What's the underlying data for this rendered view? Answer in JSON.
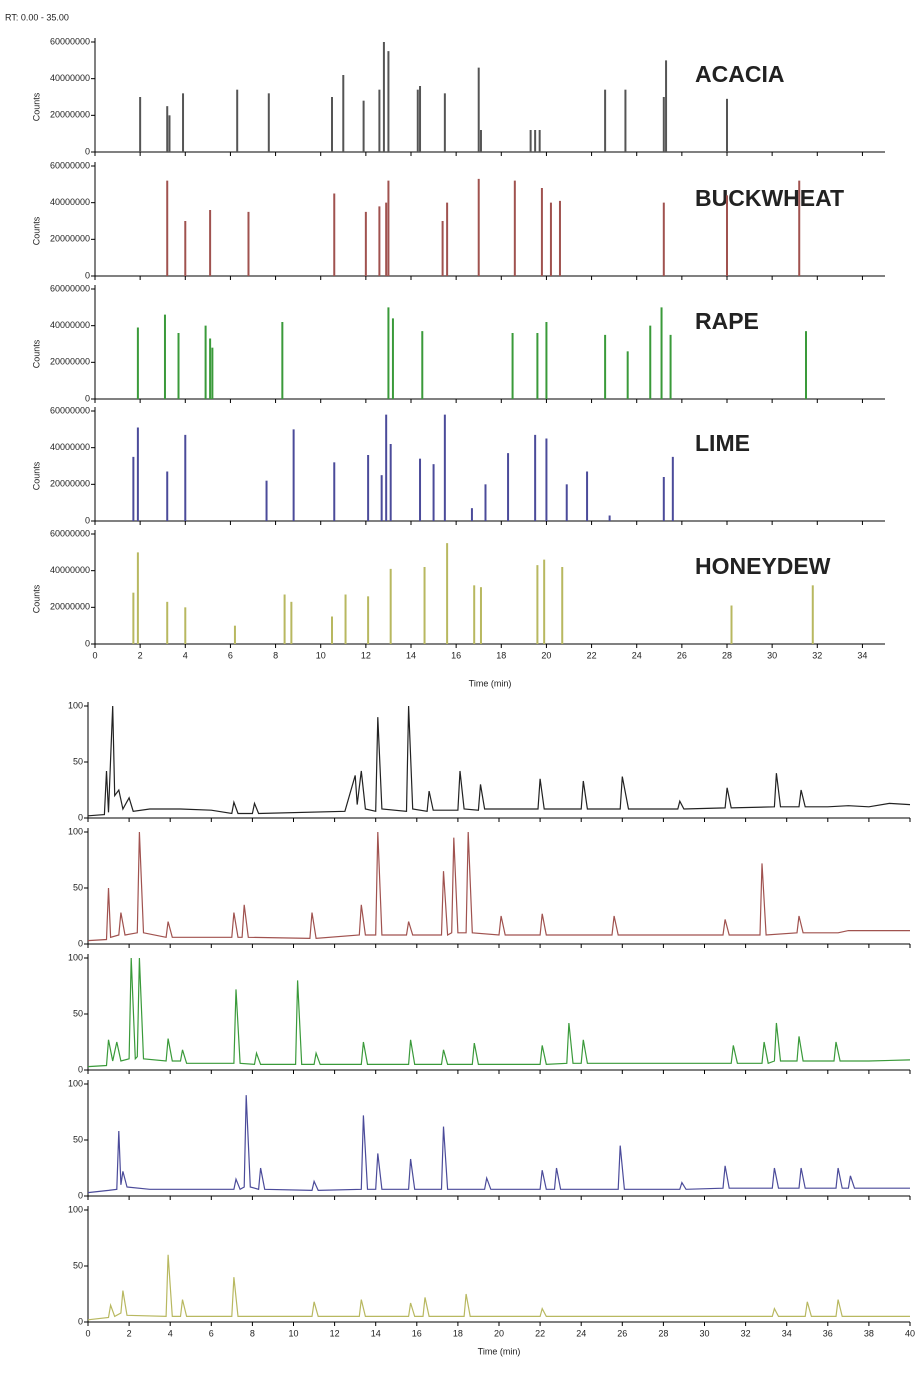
{
  "chart_data": [
    {
      "type": "stick",
      "header": "RT: 0.00 - 35.00",
      "ylabel": "Counts",
      "xlabel": "Time (min)",
      "xlim": [
        0,
        35
      ],
      "xticks": [
        0,
        2,
        4,
        6,
        8,
        10,
        12,
        14,
        16,
        18,
        20,
        22,
        24,
        26,
        28,
        30,
        32,
        34
      ],
      "ylim": [
        0,
        60000000
      ],
      "yticks": [
        0,
        20000000,
        40000000,
        60000000
      ],
      "panels": [
        {
          "name": "ACACIA",
          "color": "#555555",
          "x": [
            2.0,
            3.2,
            3.3,
            3.9,
            6.3,
            7.7,
            10.5,
            11.0,
            11.9,
            12.6,
            12.8,
            13.0,
            14.3,
            14.4,
            15.5,
            17.0,
            17.1,
            19.3,
            19.5,
            19.7,
            22.6,
            23.5,
            25.2,
            25.3,
            28.0
          ],
          "values": [
            30000000,
            25000000,
            20000000,
            32000000,
            34000000,
            32000000,
            30000000,
            42000000,
            28000000,
            34000000,
            60000000,
            55000000,
            34000000,
            36000000,
            32000000,
            46000000,
            12000000,
            12000000,
            12000000,
            12000000,
            34000000,
            34000000,
            30000000,
            50000000,
            29000000
          ]
        },
        {
          "name": "BUCKWHEAT",
          "color": "#a0524f",
          "x": [
            3.2,
            4.0,
            5.1,
            6.8,
            10.6,
            12.0,
            12.6,
            12.9,
            13.0,
            15.4,
            15.6,
            17.0,
            18.6,
            19.8,
            20.2,
            20.6,
            25.2,
            28.0,
            31.2
          ],
          "values": [
            52000000,
            30000000,
            36000000,
            35000000,
            45000000,
            35000000,
            38000000,
            40000000,
            52000000,
            30000000,
            40000000,
            53000000,
            52000000,
            48000000,
            40000000,
            41000000,
            40000000,
            44000000,
            52000000
          ]
        },
        {
          "name": "RAPE",
          "color": "#3a9a3a",
          "x": [
            1.9,
            3.1,
            3.7,
            4.9,
            5.1,
            5.2,
            8.3,
            13.0,
            13.2,
            14.5,
            18.5,
            19.6,
            20.0,
            22.6,
            23.6,
            24.6,
            25.1,
            25.5,
            31.5
          ],
          "values": [
            39000000,
            46000000,
            36000000,
            40000000,
            33000000,
            28000000,
            42000000,
            50000000,
            44000000,
            37000000,
            36000000,
            36000000,
            42000000,
            35000000,
            26000000,
            40000000,
            50000000,
            35000000,
            37000000
          ]
        },
        {
          "name": "LIME",
          "color": "#4b4b9a",
          "x": [
            1.7,
            1.9,
            3.2,
            4.0,
            7.6,
            8.8,
            10.6,
            12.1,
            12.7,
            12.9,
            13.1,
            14.4,
            15.0,
            15.5,
            16.7,
            17.3,
            18.3,
            19.5,
            20.0,
            20.9,
            21.8,
            22.8,
            25.2,
            25.6
          ],
          "values": [
            35000000,
            51000000,
            27000000,
            47000000,
            22000000,
            50000000,
            32000000,
            36000000,
            25000000,
            58000000,
            42000000,
            34000000,
            31000000,
            58000000,
            7000000,
            20000000,
            37000000,
            47000000,
            45000000,
            20000000,
            27000000,
            3000000,
            24000000,
            35000000
          ]
        },
        {
          "name": "HONEYDEW",
          "color": "#b8b860",
          "x": [
            1.7,
            1.9,
            3.2,
            4.0,
            6.2,
            8.4,
            8.7,
            10.5,
            11.1,
            12.1,
            13.1,
            14.6,
            15.6,
            16.8,
            17.1,
            19.6,
            19.9,
            20.7,
            28.2,
            31.8
          ],
          "values": [
            28000000,
            50000000,
            23000000,
            20000000,
            10000000,
            27000000,
            23000000,
            15000000,
            27000000,
            26000000,
            41000000,
            42000000,
            55000000,
            32000000,
            31000000,
            43000000,
            46000000,
            42000000,
            21000000,
            32000000
          ]
        }
      ]
    },
    {
      "type": "line",
      "xlabel": "Time (min)",
      "xlim": [
        0,
        40
      ],
      "xticks": [
        0,
        2,
        4,
        6,
        8,
        10,
        12,
        14,
        16,
        18,
        20,
        22,
        24,
        26,
        28,
        30,
        32,
        34,
        36,
        38,
        40
      ],
      "ylim": [
        0,
        100
      ],
      "yticks": [
        0,
        50,
        100
      ],
      "panels": [
        {
          "color": "#222222",
          "x": [
            0,
            0.8,
            0.9,
            1.0,
            1.2,
            1.3,
            1.5,
            1.7,
            2.0,
            2.2,
            3.0,
            4.5,
            6.0,
            7.0,
            7.1,
            7.3,
            8.0,
            8.1,
            8.3,
            12.5,
            13.0,
            13.1,
            13.3,
            13.5,
            14.0,
            14.1,
            14.3,
            15.5,
            15.6,
            15.8,
            16.5,
            16.6,
            16.8,
            18.0,
            18.1,
            18.3,
            19.0,
            19.1,
            19.3,
            21.9,
            22.0,
            22.2,
            24.0,
            24.1,
            24.3,
            25.9,
            26.0,
            26.3,
            28.7,
            28.8,
            29.0,
            31.0,
            31.1,
            31.3,
            33.4,
            33.5,
            33.7,
            34.6,
            34.7,
            34.9,
            36.0,
            37.0,
            38.0,
            39.0,
            40.0
          ],
          "values": [
            2,
            3,
            42,
            5,
            100,
            20,
            25,
            8,
            18,
            6,
            8,
            8,
            7,
            4,
            14,
            4,
            4,
            13,
            4,
            6,
            38,
            12,
            42,
            8,
            6,
            90,
            8,
            6,
            100,
            8,
            6,
            24,
            7,
            7,
            42,
            8,
            7,
            30,
            8,
            8,
            35,
            8,
            8,
            33,
            8,
            8,
            37,
            8,
            8,
            15,
            8,
            9,
            27,
            9,
            10,
            40,
            10,
            10,
            25,
            10,
            10,
            11,
            10,
            13,
            12
          ]
        },
        {
          "color": "#a0524f",
          "x": [
            0,
            0.9,
            1.0,
            1.1,
            1.5,
            1.6,
            1.8,
            2.4,
            2.5,
            2.7,
            3.8,
            3.9,
            4.1,
            7.0,
            7.1,
            7.3,
            7.5,
            7.6,
            7.8,
            10.8,
            10.9,
            11.1,
            13.2,
            13.3,
            13.5,
            14.0,
            14.1,
            14.3,
            15.5,
            15.6,
            15.8,
            17.2,
            17.3,
            17.5,
            17.7,
            17.8,
            18.0,
            18.4,
            18.5,
            18.7,
            20.0,
            20.1,
            20.3,
            22.0,
            22.1,
            22.3,
            25.5,
            25.6,
            25.8,
            27.0,
            28.5,
            30.9,
            31.0,
            31.2,
            32.7,
            32.8,
            33.0,
            34.5,
            34.6,
            34.8,
            36.5,
            37.0,
            40.0
          ],
          "values": [
            3,
            4,
            50,
            6,
            8,
            28,
            8,
            10,
            100,
            10,
            6,
            20,
            6,
            6,
            28,
            6,
            6,
            35,
            6,
            5,
            28,
            5,
            8,
            35,
            8,
            8,
            100,
            8,
            8,
            20,
            8,
            8,
            65,
            8,
            10,
            95,
            10,
            10,
            100,
            10,
            8,
            25,
            8,
            8,
            27,
            8,
            8,
            25,
            8,
            8,
            8,
            8,
            22,
            8,
            8,
            72,
            8,
            10,
            25,
            10,
            10,
            12,
            12
          ]
        },
        {
          "color": "#3a9a3a",
          "x": [
            0,
            0.9,
            1.0,
            1.2,
            1.4,
            1.6,
            2.0,
            2.1,
            2.3,
            2.4,
            2.5,
            2.7,
            3.8,
            3.9,
            4.1,
            4.5,
            4.6,
            4.8,
            7.1,
            7.2,
            7.4,
            8.1,
            8.2,
            8.4,
            10.1,
            10.2,
            10.4,
            11.0,
            11.1,
            11.3,
            13.3,
            13.4,
            13.6,
            15.6,
            15.7,
            15.9,
            17.2,
            17.3,
            17.5,
            18.7,
            18.8,
            19.0,
            22.0,
            22.1,
            22.3,
            23.3,
            23.4,
            23.6,
            24.0,
            24.1,
            24.3,
            31.3,
            31.4,
            31.6,
            32.8,
            32.9,
            33.1,
            33.4,
            33.5,
            33.7,
            34.5,
            34.6,
            34.8,
            36.3,
            36.4,
            36.6,
            38.0,
            40.0
          ],
          "values": [
            3,
            4,
            27,
            8,
            25,
            8,
            10,
            100,
            10,
            12,
            100,
            10,
            8,
            28,
            8,
            8,
            18,
            6,
            6,
            72,
            6,
            5,
            15,
            5,
            5,
            80,
            5,
            5,
            15,
            5,
            5,
            25,
            5,
            5,
            27,
            5,
            5,
            18,
            5,
            5,
            24,
            5,
            5,
            22,
            5,
            6,
            42,
            6,
            6,
            27,
            6,
            6,
            22,
            6,
            6,
            25,
            6,
            8,
            42,
            8,
            8,
            30,
            8,
            8,
            25,
            8,
            8,
            9
          ]
        },
        {
          "color": "#4b4b9a",
          "x": [
            0,
            1.0,
            1.4,
            1.5,
            1.6,
            1.7,
            1.9,
            3.0,
            4.5,
            7.1,
            7.2,
            7.4,
            7.6,
            7.7,
            7.9,
            8.3,
            8.4,
            8.6,
            10.9,
            11.0,
            11.2,
            13.3,
            13.4,
            13.6,
            14.0,
            14.1,
            14.3,
            15.6,
            15.7,
            15.9,
            17.2,
            17.3,
            17.5,
            19.3,
            19.4,
            19.6,
            22.0,
            22.1,
            22.3,
            22.7,
            22.8,
            23.0,
            25.8,
            25.9,
            26.1,
            28.8,
            28.9,
            29.1,
            30.9,
            31.0,
            31.2,
            33.3,
            33.4,
            33.6,
            34.6,
            34.7,
            34.9,
            36.4,
            36.5,
            36.7,
            37.0,
            37.1,
            37.3,
            40.0
          ],
          "values": [
            3,
            5,
            6,
            58,
            10,
            22,
            8,
            6,
            6,
            6,
            15,
            6,
            8,
            90,
            8,
            6,
            25,
            6,
            5,
            13,
            5,
            6,
            72,
            6,
            6,
            38,
            6,
            6,
            33,
            6,
            6,
            62,
            6,
            6,
            16,
            6,
            6,
            23,
            6,
            6,
            25,
            6,
            6,
            45,
            6,
            6,
            12,
            6,
            7,
            27,
            7,
            7,
            25,
            7,
            7,
            25,
            7,
            7,
            25,
            7,
            7,
            18,
            7,
            7
          ]
        },
        {
          "color": "#b8b860",
          "x": [
            0,
            1.0,
            1.1,
            1.3,
            1.6,
            1.7,
            1.9,
            3.8,
            3.9,
            4.1,
            4.5,
            4.6,
            4.8,
            7.0,
            7.1,
            7.3,
            10.9,
            11.0,
            11.2,
            13.2,
            13.3,
            13.5,
            15.6,
            15.7,
            15.9,
            16.3,
            16.4,
            16.6,
            18.3,
            18.4,
            18.6,
            22.0,
            22.1,
            22.3,
            33.3,
            33.4,
            33.6,
            34.9,
            35.0,
            35.2,
            36.4,
            36.5,
            36.7,
            40.0
          ],
          "values": [
            2,
            4,
            15,
            5,
            8,
            28,
            6,
            5,
            60,
            5,
            5,
            20,
            5,
            5,
            40,
            5,
            5,
            18,
            5,
            5,
            20,
            5,
            5,
            17,
            5,
            5,
            22,
            5,
            5,
            25,
            5,
            5,
            12,
            5,
            5,
            12,
            5,
            5,
            18,
            5,
            5,
            20,
            5,
            5
          ]
        }
      ]
    }
  ]
}
